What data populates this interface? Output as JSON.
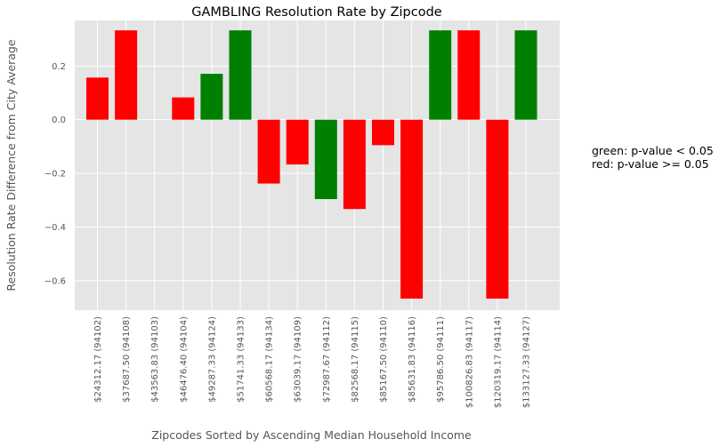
{
  "chart_data": {
    "type": "bar",
    "title": "GAMBLING Resolution Rate by Zipcode",
    "xlabel": "Zipcodes Sorted by Ascending Median Household Income",
    "ylabel": "Resolution Rate Difference from City Average",
    "ylim": [
      -0.71,
      0.37
    ],
    "yticks": [
      {
        "value": 0.2,
        "label": "0.2"
      },
      {
        "value": 0.0,
        "label": "0.0"
      },
      {
        "value": -0.2,
        "label": "−0.2"
      },
      {
        "value": -0.4,
        "label": "−0.4"
      },
      {
        "value": -0.6,
        "label": "−0.6"
      }
    ],
    "grid": true,
    "categories": [
      "$24312.17  (94102)",
      "$37687.50  (94108)",
      "$43563.83  (94103)",
      "$46476.40  (94104)",
      "$49287.33  (94124)",
      "$51741.33  (94133)",
      "$60568.17  (94134)",
      "$63039.17  (94109)",
      "$72987.67  (94112)",
      "$82568.17  (94115)",
      "$85167.50  (94110)",
      "$85631.83  (94116)",
      "$95786.50  (94111)",
      "$100826.83  (94117)",
      "$120319.17  (94114)",
      "$133127.33  (94127)"
    ],
    "values": [
      0.157,
      0.333,
      0.0,
      0.083,
      0.171,
      0.333,
      -0.238,
      -0.167,
      -0.296,
      -0.333,
      -0.095,
      -0.667,
      0.333,
      0.333,
      -0.667,
      0.333
    ],
    "colors": [
      "#ff0000",
      "#ff0000",
      "#ff0000",
      "#ff0000",
      "#008000",
      "#008000",
      "#ff0000",
      "#ff0000",
      "#008000",
      "#ff0000",
      "#ff0000",
      "#ff0000",
      "#008000",
      "#ff0000",
      "#ff0000",
      "#008000"
    ],
    "annotations": [
      "green: p-value < 0.05",
      "red: p-value >= 0.05"
    ]
  }
}
